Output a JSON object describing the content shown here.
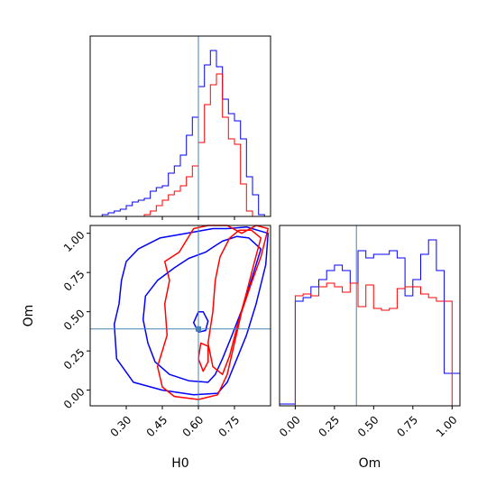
{
  "chart_data": [
    {
      "type": "histogram",
      "panel": "H0 marginal",
      "xlim": [
        0.15,
        0.9
      ],
      "truth": 0.6,
      "bin_edges": [
        0.15,
        0.175,
        0.2,
        0.225,
        0.25,
        0.275,
        0.3,
        0.325,
        0.35,
        0.375,
        0.4,
        0.425,
        0.45,
        0.475,
        0.5,
        0.525,
        0.55,
        0.575,
        0.6,
        0.625,
        0.65,
        0.675,
        0.7,
        0.725,
        0.75,
        0.775,
        0.8,
        0.825,
        0.85,
        0.875,
        0.9
      ],
      "series": [
        {
          "color": "#0000ff",
          "counts": [
            0,
            0,
            0.01,
            0.02,
            0.03,
            0.04,
            0.06,
            0.08,
            0.09,
            0.1,
            0.14,
            0.16,
            0.17,
            0.24,
            0.28,
            0.34,
            0.45,
            0.55,
            0.72,
            0.84,
            0.92,
            0.83,
            0.65,
            0.57,
            0.53,
            0.43,
            0.22,
            0.12,
            0.01,
            0
          ]
        },
        {
          "color": "#ff0000",
          "counts": [
            0,
            0,
            0,
            0,
            0,
            0,
            0,
            0,
            0,
            0.01,
            0.03,
            0.06,
            0.09,
            0.12,
            0.14,
            0.17,
            0.22,
            0.28,
            0.41,
            0.62,
            0.73,
            0.79,
            0.55,
            0.43,
            0.4,
            0.18,
            0.03,
            0,
            0,
            0
          ]
        }
      ]
    },
    {
      "type": "contour",
      "panel": "H0 vs Om",
      "xlabel": "H0",
      "ylabel": "Om",
      "xlim": [
        0.15,
        0.9
      ],
      "ylim": [
        -0.1,
        1.05
      ],
      "xticks": [
        "0.30",
        "0.45",
        "0.60",
        "0.75"
      ],
      "yticks": [
        "0.00",
        "0.25",
        "0.50",
        "0.75",
        "1.00"
      ],
      "truth": [
        0.6,
        0.39
      ],
      "series": [
        {
          "color": "#0000ff",
          "contours": [
            [
              [
                0.66,
                1.03
              ],
              [
                0.55,
                1.0
              ],
              [
                0.44,
                0.97
              ],
              [
                0.35,
                0.9
              ],
              [
                0.3,
                0.82
              ],
              [
                0.28,
                0.7
              ],
              [
                0.27,
                0.55
              ],
              [
                0.25,
                0.42
              ],
              [
                0.26,
                0.2
              ],
              [
                0.33,
                0.05
              ],
              [
                0.45,
                0.0
              ],
              [
                0.58,
                -0.03
              ],
              [
                0.68,
                -0.02
              ],
              [
                0.72,
                0.05
              ],
              [
                0.76,
                0.2
              ],
              [
                0.8,
                0.35
              ],
              [
                0.84,
                0.55
              ],
              [
                0.88,
                0.8
              ],
              [
                0.89,
                1.0
              ],
              [
                0.8,
                1.04
              ],
              [
                0.72,
                1.03
              ]
            ],
            [
              [
                0.63,
                0.88
              ],
              [
                0.56,
                0.84
              ],
              [
                0.5,
                0.78
              ],
              [
                0.43,
                0.7
              ],
              [
                0.38,
                0.6
              ],
              [
                0.37,
                0.45
              ],
              [
                0.39,
                0.3
              ],
              [
                0.42,
                0.18
              ],
              [
                0.48,
                0.1
              ],
              [
                0.56,
                0.06
              ],
              [
                0.64,
                0.05
              ],
              [
                0.67,
                0.1
              ],
              [
                0.7,
                0.2
              ],
              [
                0.74,
                0.35
              ],
              [
                0.79,
                0.55
              ],
              [
                0.83,
                0.75
              ],
              [
                0.86,
                0.9
              ],
              [
                0.81,
                0.97
              ],
              [
                0.76,
                0.98
              ],
              [
                0.7,
                0.95
              ],
              [
                0.66,
                0.91
              ]
            ],
            [
              [
                0.6,
                0.5
              ],
              [
                0.58,
                0.43
              ],
              [
                0.6,
                0.37
              ],
              [
                0.63,
                0.38
              ],
              [
                0.64,
                0.44
              ],
              [
                0.62,
                0.5
              ]
            ]
          ]
        },
        {
          "color": "#ff0000",
          "contours": [
            [
              [
                0.58,
                1.03
              ],
              [
                0.52,
                0.88
              ],
              [
                0.46,
                0.82
              ],
              [
                0.48,
                0.7
              ],
              [
                0.46,
                0.55
              ],
              [
                0.47,
                0.35
              ],
              [
                0.43,
                0.15
              ],
              [
                0.45,
                0.02
              ],
              [
                0.5,
                -0.04
              ],
              [
                0.6,
                -0.06
              ],
              [
                0.68,
                -0.03
              ],
              [
                0.72,
                0.1
              ],
              [
                0.75,
                0.3
              ],
              [
                0.78,
                0.5
              ],
              [
                0.82,
                0.68
              ],
              [
                0.86,
                0.85
              ],
              [
                0.89,
                1.03
              ],
              [
                0.84,
                1.05
              ],
              [
                0.78,
                1.0
              ],
              [
                0.72,
                1.05
              ],
              [
                0.64,
                1.05
              ]
            ],
            [
              [
                0.73,
                0.97
              ],
              [
                0.69,
                0.85
              ],
              [
                0.67,
                0.7
              ],
              [
                0.66,
                0.5
              ],
              [
                0.64,
                0.3
              ],
              [
                0.66,
                0.15
              ],
              [
                0.7,
                0.1
              ],
              [
                0.73,
                0.22
              ],
              [
                0.76,
                0.4
              ],
              [
                0.8,
                0.62
              ],
              [
                0.83,
                0.8
              ],
              [
                0.86,
                0.97
              ],
              [
                0.82,
                1.02
              ],
              [
                0.77,
                1.02
              ]
            ],
            [
              [
                0.61,
                0.3
              ],
              [
                0.6,
                0.2
              ],
              [
                0.62,
                0.12
              ],
              [
                0.64,
                0.18
              ],
              [
                0.64,
                0.28
              ]
            ]
          ]
        }
      ]
    },
    {
      "type": "histogram",
      "panel": "Om marginal",
      "xlabel": "Om",
      "xlim": [
        -0.1,
        1.05
      ],
      "xticks": [
        "0.00",
        "0.25",
        "0.50",
        "0.75",
        "1.00"
      ],
      "truth": 0.39,
      "bin_edges": [
        -0.1,
        -0.05,
        0.0,
        0.05,
        0.1,
        0.15,
        0.2,
        0.25,
        0.3,
        0.35,
        0.4,
        0.45,
        0.5,
        0.55,
        0.6,
        0.65,
        0.7,
        0.75,
        0.8,
        0.85,
        0.9,
        0.95,
        1.0,
        1.05
      ],
      "series": [
        {
          "color": "#0000ff",
          "counts": [
            0.01,
            0.01,
            0.58,
            0.6,
            0.66,
            0.7,
            0.75,
            0.78,
            0.75,
            0.68,
            0.86,
            0.82,
            0.84,
            0.84,
            0.86,
            0.82,
            0.61,
            0.7,
            0.84,
            0.92,
            0.75,
            0.18,
            0.18
          ]
        },
        {
          "color": "#ff0000",
          "counts": [
            0,
            0,
            0.61,
            0.62,
            0.61,
            0.66,
            0.68,
            0.66,
            0.63,
            0.68,
            0.55,
            0.67,
            0.54,
            0.53,
            0.54,
            0.65,
            0.66,
            0.66,
            0.62,
            0.6,
            0.58,
            0.58,
            0
          ]
        }
      ]
    }
  ],
  "colors": {
    "truth": "#4682b4",
    "axes": "#000000"
  }
}
